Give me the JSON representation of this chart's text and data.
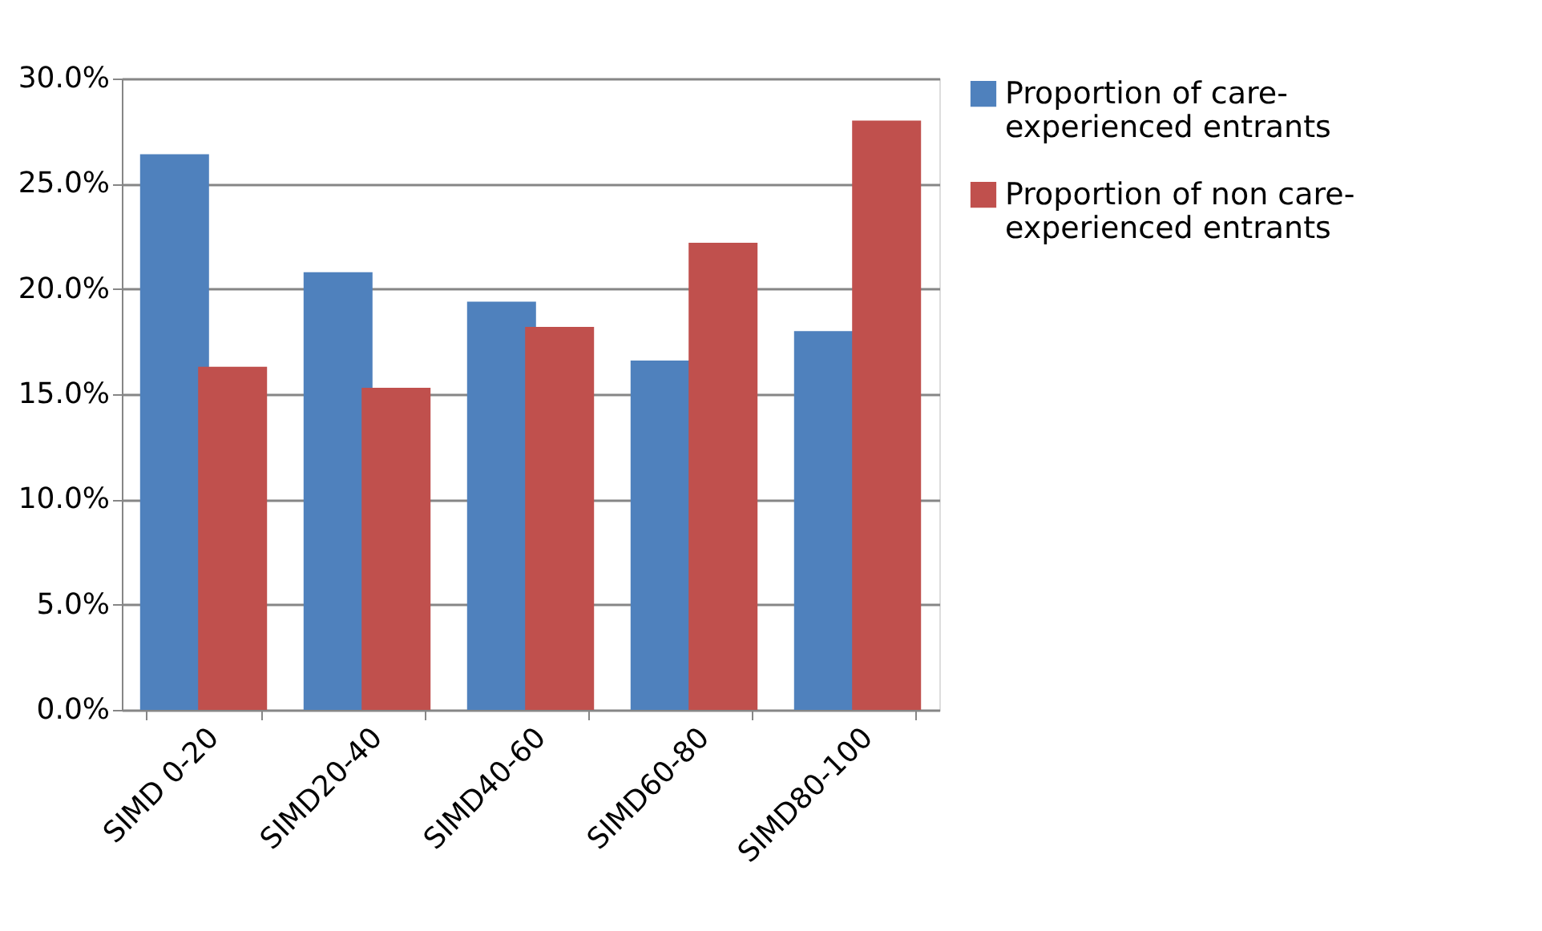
{
  "chart_data": {
    "type": "bar",
    "categories": [
      "SIMD 0-20",
      "SIMD20-40",
      "SIMD40-60",
      "SIMD60-80",
      "SIMD80-100"
    ],
    "series": [
      {
        "name": "Proportion of care-experienced entrants",
        "color": "#4f81bd",
        "values": [
          26.4,
          20.8,
          19.4,
          16.6,
          18.0
        ]
      },
      {
        "name": "Proportion of non care-experienced entrants",
        "color": "#c0504d",
        "values": [
          16.3,
          15.3,
          18.2,
          22.2,
          28.0
        ]
      }
    ],
    "ylim": [
      0,
      30
    ],
    "yticks": [
      {
        "value": 0,
        "label": "0.0%"
      },
      {
        "value": 5,
        "label": "5.0%"
      },
      {
        "value": 10,
        "label": "10.0%"
      },
      {
        "value": 15,
        "label": "15.0%"
      },
      {
        "value": 20,
        "label": "20.0%"
      },
      {
        "value": 25,
        "label": "25.0%"
      },
      {
        "value": 30,
        "label": "30.0%"
      }
    ],
    "grid": "y",
    "legend": "right"
  }
}
